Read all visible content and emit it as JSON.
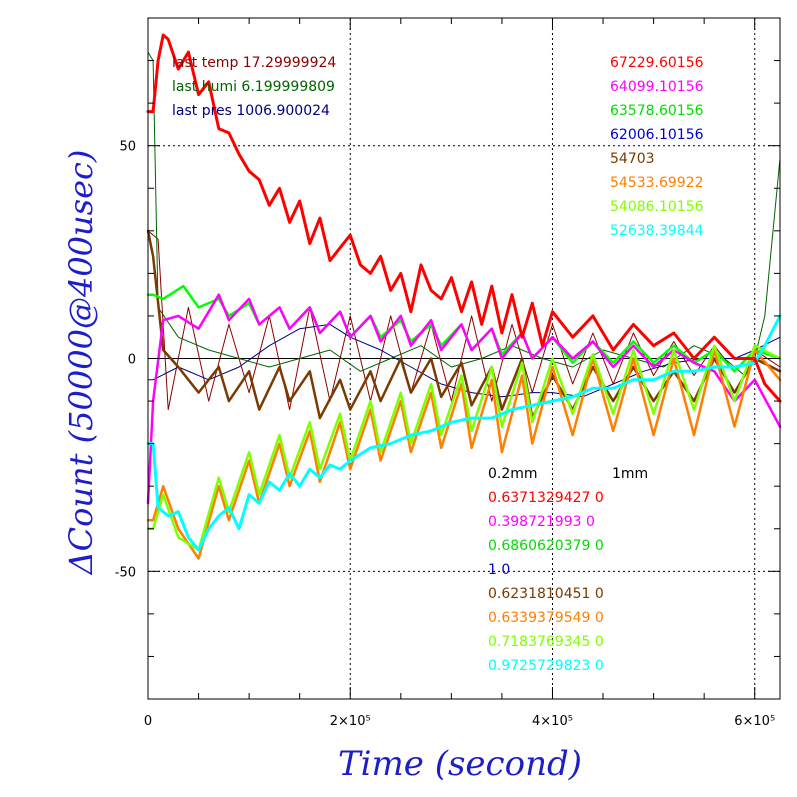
{
  "chart_data": {
    "type": "line",
    "xlabel": "Time (second)",
    "ylabel": "ΔCount (50000@400usec)",
    "xlim": [
      0,
      625000
    ],
    "ylim": [
      -80,
      80
    ],
    "x_ticks": [
      {
        "value": 0,
        "label": "0"
      },
      {
        "value": 200000,
        "label": "2×10⁵"
      },
      {
        "value": 400000,
        "label": "4×10⁵"
      },
      {
        "value": 600000,
        "label": "6×10⁵"
      }
    ],
    "y_ticks": [
      {
        "value": 50,
        "label": "50"
      },
      {
        "value": 0,
        "label": "0"
      },
      {
        "value": -50,
        "label": "-50"
      }
    ],
    "grid": true,
    "header_left": [
      {
        "text": "last temp 17.29999924",
        "color": "#8b0000"
      },
      {
        "text": "last humi 6.199999809",
        "color": "#006400"
      },
      {
        "text": "last pres 1006.900024",
        "color": "#00007f"
      }
    ],
    "header_right": [
      {
        "text": "67229.60156",
        "color": "#ff0000"
      },
      {
        "text": "64099.10156",
        "color": "#ff00ff"
      },
      {
        "text": "63578.60156",
        "color": "#00dd00"
      },
      {
        "text": "62006.10156",
        "color": "#0000c8"
      },
      {
        "text": "54703",
        "color": "#7a3a00"
      },
      {
        "text": "54533.69922",
        "color": "#ff7f00"
      },
      {
        "text": "54086.10156",
        "color": "#7fff00"
      },
      {
        "text": "52638.39844",
        "color": "#00ffff"
      }
    ],
    "factor_header": {
      "col1": "0.2mm",
      "col2": "1mm",
      "color": "#000000"
    },
    "factor_rows": [
      {
        "text": "0.6371329427 0",
        "color": "#ff0000"
      },
      {
        "text": "0.398721993 0",
        "color": "#ff00ff"
      },
      {
        "text": "0.6860620379 0",
        "color": "#00dd00"
      },
      {
        "text": "1 0",
        "color": "#0000c8"
      },
      {
        "text": "0.6231810451 0",
        "color": "#7a3a00"
      },
      {
        "text": "0.6339379549 0",
        "color": "#ff7f00"
      },
      {
        "text": "0.7183769345 0",
        "color": "#7fff00"
      },
      {
        "text": "0.9725729823 0",
        "color": "#00ffff"
      }
    ],
    "series": [
      {
        "color": "#8b0000",
        "width": 1,
        "x": [
          0,
          10000,
          20000,
          40000,
          60000,
          80000,
          100000,
          120000,
          140000,
          160000,
          180000,
          200000,
          220000,
          240000,
          260000,
          280000,
          300000,
          320000,
          340000,
          360000,
          380000,
          400000,
          420000,
          440000,
          460000,
          480000,
          500000,
          520000,
          540000,
          560000,
          580000,
          600000,
          625000
        ],
        "y": [
          30,
          28,
          -12,
          12,
          -10,
          8,
          -8,
          10,
          -12,
          12,
          -10,
          10,
          -10,
          10,
          -8,
          8,
          -10,
          10,
          -10,
          8,
          -8,
          8,
          -6,
          6,
          -6,
          6,
          -4,
          4,
          -4,
          3,
          -3,
          2,
          -2
        ]
      },
      {
        "color": "#006400",
        "width": 1,
        "x": [
          0,
          5000,
          10000,
          30000,
          60000,
          90000,
          120000,
          150000,
          180000,
          210000,
          240000,
          270000,
          300000,
          330000,
          360000,
          390000,
          420000,
          450000,
          480000,
          510000,
          540000,
          570000,
          590000,
          600000,
          610000,
          625000
        ],
        "y": [
          72,
          70,
          12,
          5,
          2,
          0,
          -2,
          0,
          2,
          -3,
          0,
          3,
          -2,
          0,
          3,
          0,
          -2,
          2,
          0,
          -2,
          3,
          0,
          -4,
          0,
          10,
          47
        ]
      },
      {
        "color": "#00007f",
        "width": 1,
        "x": [
          0,
          5000,
          30000,
          60000,
          90000,
          120000,
          150000,
          180000,
          200000,
          230000,
          260000,
          290000,
          320000,
          350000,
          380000,
          400000,
          430000,
          460000,
          490000,
          520000,
          550000,
          580000,
          600000,
          625000
        ],
        "y": [
          -5,
          -5,
          -2,
          -5,
          -2,
          3,
          7,
          8,
          5,
          2,
          -2,
          -6,
          -8,
          -9,
          -8,
          -8,
          -9,
          -6,
          -3,
          -1,
          0,
          0,
          2,
          5
        ]
      },
      {
        "color": "#7a3a00",
        "width": 2.5,
        "x": [
          0,
          5000,
          15000,
          30000,
          50000,
          70000,
          80000,
          100000,
          110000,
          130000,
          140000,
          160000,
          170000,
          190000,
          200000,
          220000,
          230000,
          250000,
          260000,
          280000,
          290000,
          310000,
          320000,
          340000,
          350000,
          370000,
          380000,
          400000,
          420000,
          440000,
          460000,
          480000,
          500000,
          520000,
          540000,
          560000,
          580000,
          600000,
          625000
        ],
        "y": [
          30,
          24,
          2,
          -2,
          -8,
          -2,
          -10,
          -3,
          -12,
          -2,
          -10,
          -3,
          -14,
          -5,
          -12,
          -3,
          -10,
          0,
          -8,
          0,
          -9,
          -1,
          -11,
          -2,
          -12,
          0,
          -14,
          -4,
          -12,
          -2,
          -10,
          -2,
          -10,
          -3,
          -10,
          0,
          -8,
          0,
          -3
        ]
      },
      {
        "color": "#00ff00",
        "width": 2.5,
        "x": [
          0,
          5000,
          15000,
          35000,
          50000,
          70000,
          80000,
          100000,
          110000,
          130000,
          140000,
          160000,
          170000,
          190000,
          200000,
          220000,
          230000,
          250000,
          260000,
          280000,
          290000,
          310000,
          320000,
          340000,
          350000,
          370000,
          380000,
          400000,
          420000,
          440000,
          460000,
          480000,
          500000,
          520000,
          540000,
          560000,
          580000,
          600000,
          625000
        ],
        "y": [
          15,
          15,
          14,
          17,
          12,
          14,
          10,
          13,
          8,
          12,
          7,
          12,
          6,
          11,
          5,
          10,
          5,
          9,
          4,
          8,
          3,
          8,
          2,
          7,
          1,
          6,
          0,
          5,
          -1,
          4,
          -1,
          4,
          -1,
          3,
          -1,
          2,
          -3,
          2,
          0
        ]
      },
      {
        "color": "#ff00ff",
        "width": 2.5,
        "x": [
          0,
          5000,
          15000,
          30000,
          50000,
          70000,
          80000,
          100000,
          110000,
          130000,
          140000,
          160000,
          170000,
          190000,
          200000,
          220000,
          230000,
          250000,
          260000,
          280000,
          290000,
          310000,
          320000,
          340000,
          350000,
          370000,
          380000,
          400000,
          420000,
          440000,
          460000,
          480000,
          500000,
          520000,
          540000,
          560000,
          580000,
          600000,
          625000
        ],
        "y": [
          -34,
          -10,
          9,
          10,
          7,
          15,
          9,
          14,
          8,
          12,
          7,
          12,
          6,
          11,
          5,
          10,
          4,
          10,
          3,
          9,
          2,
          8,
          2,
          7,
          0,
          6,
          0,
          5,
          0,
          4,
          -2,
          3,
          -2,
          2,
          -1,
          -3,
          -10,
          -5,
          -16
        ]
      },
      {
        "color": "#ff7f00",
        "width": 2.5,
        "x": [
          0,
          5000,
          15000,
          30000,
          50000,
          70000,
          80000,
          100000,
          110000,
          130000,
          140000,
          160000,
          170000,
          190000,
          200000,
          220000,
          230000,
          250000,
          260000,
          280000,
          290000,
          310000,
          320000,
          340000,
          350000,
          370000,
          380000,
          400000,
          420000,
          440000,
          460000,
          480000,
          500000,
          520000,
          540000,
          560000,
          580000,
          600000,
          625000
        ],
        "y": [
          -38,
          -38,
          -30,
          -40,
          -47,
          -30,
          -38,
          -24,
          -34,
          -20,
          -30,
          -17,
          -29,
          -15,
          -26,
          -12,
          -24,
          -10,
          -22,
          -8,
          -21,
          -6,
          -21,
          -5,
          -22,
          -4,
          -20,
          -2,
          -18,
          0,
          -17,
          0,
          -18,
          0,
          -18,
          2,
          -16,
          2,
          -5
        ]
      },
      {
        "color": "#7fff00",
        "width": 2.5,
        "x": [
          0,
          5000,
          15000,
          30000,
          50000,
          70000,
          80000,
          100000,
          110000,
          130000,
          140000,
          160000,
          170000,
          190000,
          200000,
          220000,
          230000,
          250000,
          260000,
          280000,
          290000,
          310000,
          320000,
          340000,
          350000,
          370000,
          380000,
          400000,
          420000,
          440000,
          460000,
          480000,
          500000,
          520000,
          540000,
          560000,
          580000,
          600000,
          625000
        ],
        "y": [
          -40,
          -40,
          -32,
          -42,
          -45,
          -28,
          -36,
          -22,
          -32,
          -18,
          -28,
          -15,
          -26,
          -13,
          -24,
          -10,
          -22,
          -8,
          -20,
          -6,
          -18,
          -4,
          -17,
          -2,
          -16,
          -1,
          -15,
          0,
          -13,
          1,
          -13,
          2,
          -13,
          2,
          -12,
          3,
          -10,
          3,
          0
        ]
      },
      {
        "color": "#00ffff",
        "width": 3,
        "x": [
          0,
          5000,
          10000,
          20000,
          30000,
          40000,
          50000,
          60000,
          70000,
          80000,
          90000,
          100000,
          110000,
          120000,
          130000,
          140000,
          150000,
          160000,
          170000,
          180000,
          190000,
          200000,
          220000,
          240000,
          260000,
          280000,
          300000,
          320000,
          340000,
          360000,
          380000,
          400000,
          420000,
          440000,
          460000,
          480000,
          500000,
          520000,
          540000,
          560000,
          580000,
          600000,
          610000,
          625000
        ],
        "y": [
          -20,
          -20,
          -35,
          -37,
          -36,
          -42,
          -45,
          -40,
          -37,
          -35,
          -40,
          -32,
          -34,
          -29,
          -31,
          -27,
          -30,
          -26,
          -28,
          -25,
          -26,
          -24,
          -21,
          -20,
          -18,
          -17,
          -15,
          -14,
          -14,
          -12,
          -11,
          -10,
          -9,
          -7,
          -7,
          -5,
          -5,
          -3,
          -3,
          -2,
          -2,
          -1,
          3,
          10
        ]
      },
      {
        "color": "#ff0000",
        "width": 3,
        "x": [
          0,
          5000,
          10000,
          15000,
          20000,
          30000,
          40000,
          50000,
          60000,
          70000,
          80000,
          90000,
          100000,
          110000,
          120000,
          130000,
          140000,
          150000,
          160000,
          170000,
          180000,
          190000,
          200000,
          210000,
          220000,
          230000,
          240000,
          250000,
          260000,
          270000,
          280000,
          290000,
          300000,
          310000,
          320000,
          330000,
          340000,
          350000,
          360000,
          370000,
          380000,
          390000,
          400000,
          420000,
          440000,
          460000,
          480000,
          500000,
          520000,
          540000,
          560000,
          580000,
          600000,
          610000,
          625000
        ],
        "y": [
          58,
          58,
          70,
          76,
          75,
          68,
          72,
          62,
          65,
          54,
          53,
          48,
          44,
          42,
          36,
          40,
          32,
          37,
          27,
          33,
          23,
          26,
          29,
          22,
          20,
          24,
          16,
          20,
          11,
          22,
          16,
          14,
          19,
          11,
          18,
          8,
          17,
          6,
          15,
          5,
          13,
          3,
          11,
          5,
          10,
          2,
          8,
          3,
          6,
          0,
          5,
          0,
          0,
          -6,
          -10
        ]
      }
    ]
  }
}
